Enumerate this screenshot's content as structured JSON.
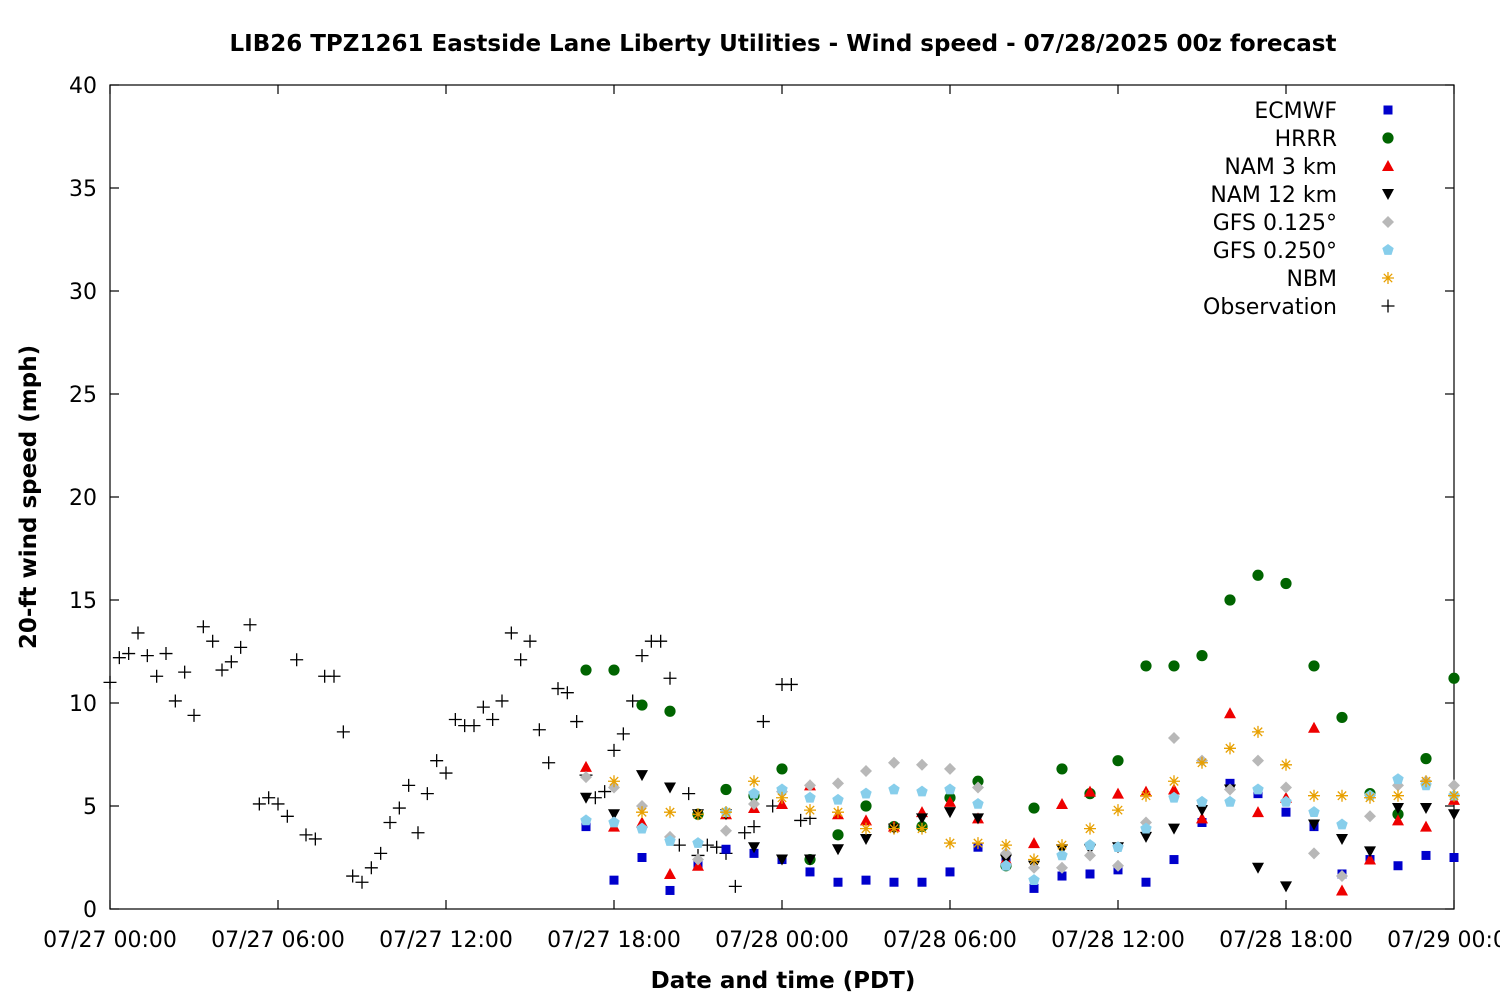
{
  "chart_data": {
    "type": "scatter",
    "title": "LIB26 TPZ1261 Eastside Lane Liberty Utilities - Wind speed - 07/28/2025 00z forecast",
    "xlabel": "Date and time (PDT)",
    "ylabel": "20-ft wind speed (mph)",
    "xlim": [
      "07/27 00:00",
      "07/29 00:00"
    ],
    "ylim": [
      0,
      40
    ],
    "x_tick_labels": [
      "07/27 00:00",
      "07/27 06:00",
      "07/27 12:00",
      "07/27 18:00",
      "07/28 00:00",
      "07/28 06:00",
      "07/28 12:00",
      "07/28 18:00",
      "07/29 00:00"
    ],
    "y_tick_labels": [
      "0",
      "5",
      "10",
      "15",
      "20",
      "25",
      "30",
      "35",
      "40"
    ],
    "grid": false,
    "legend_position": "top-right",
    "series": [
      {
        "name": "ECMWF",
        "marker": "square",
        "color": "#0000cc",
        "x": [
          "07/27 17:00",
          "07/27 18:00",
          "07/27 19:00",
          "07/27 20:00",
          "07/27 21:00",
          "07/27 22:00",
          "07/27 23:00",
          "07/28 00:00",
          "07/28 01:00",
          "07/28 02:00",
          "07/28 03:00",
          "07/28 04:00",
          "07/28 05:00",
          "07/28 06:00",
          "07/28 07:00",
          "07/28 08:00",
          "07/28 09:00",
          "07/28 10:00",
          "07/28 11:00",
          "07/28 12:00",
          "07/28 13:00",
          "07/28 14:00",
          "07/28 15:00",
          "07/28 16:00",
          "07/28 17:00",
          "07/28 18:00",
          "07/28 19:00",
          "07/28 20:00",
          "07/28 21:00",
          "07/28 22:00",
          "07/28 23:00",
          "07/29 00:00"
        ],
        "y": [
          4.0,
          1.4,
          2.5,
          0.9,
          2.2,
          2.9,
          2.7,
          2.4,
          1.8,
          1.3,
          1.4,
          1.3,
          1.3,
          1.8,
          3.0,
          2.3,
          1.0,
          1.6,
          1.7,
          1.9,
          1.3,
          2.4,
          4.2,
          6.1,
          5.6,
          4.7,
          4.0,
          1.7,
          2.4,
          2.1,
          2.6,
          2.5
        ]
      },
      {
        "name": "HRRR",
        "marker": "circle",
        "color": "#006400",
        "x": [
          "07/27 17:00",
          "07/27 18:00",
          "07/27 19:00",
          "07/27 20:00",
          "07/27 21:00",
          "07/27 22:00",
          "07/27 23:00",
          "07/28 00:00",
          "07/28 01:00",
          "07/28 02:00",
          "07/28 03:00",
          "07/28 04:00",
          "07/28 05:00",
          "07/28 06:00",
          "07/28 07:00",
          "07/28 08:00",
          "07/28 09:00",
          "07/28 10:00",
          "07/28 11:00",
          "07/28 12:00",
          "07/28 13:00",
          "07/28 14:00",
          "07/28 15:00",
          "07/28 16:00",
          "07/28 17:00",
          "07/28 18:00",
          "07/28 19:00",
          "07/28 20:00",
          "07/28 21:00",
          "07/28 22:00",
          "07/28 23:00",
          "07/29 00:00"
        ],
        "y": [
          11.6,
          11.6,
          9.9,
          9.6,
          4.6,
          5.8,
          5.5,
          6.8,
          2.4,
          3.6,
          5.0,
          4.0,
          4.0,
          5.4,
          6.2,
          2.1,
          4.9,
          6.8,
          5.6,
          7.2,
          11.8,
          11.8,
          12.3,
          15.0,
          16.2,
          15.8,
          11.8,
          9.3,
          5.6,
          4.6,
          7.3,
          11.2
        ]
      },
      {
        "name": "NAM 3 km",
        "marker": "triangle-up",
        "color": "#ee0000",
        "x": [
          "07/27 17:00",
          "07/27 18:00",
          "07/27 19:00",
          "07/27 20:00",
          "07/27 21:00",
          "07/27 22:00",
          "07/27 23:00",
          "07/28 00:00",
          "07/28 01:00",
          "07/28 02:00",
          "07/28 03:00",
          "07/28 04:00",
          "07/28 05:00",
          "07/28 06:00",
          "07/28 07:00",
          "07/28 08:00",
          "07/28 09:00",
          "07/28 10:00",
          "07/28 11:00",
          "07/28 12:00",
          "07/28 13:00",
          "07/28 14:00",
          "07/28 15:00",
          "07/28 16:00",
          "07/28 17:00",
          "07/28 18:00",
          "07/28 19:00",
          "07/28 20:00",
          "07/28 21:00",
          "07/28 22:00",
          "07/28 23:00",
          "07/29 00:00"
        ],
        "y": [
          6.9,
          4.0,
          4.2,
          1.7,
          2.1,
          4.6,
          4.9,
          5.1,
          6.0,
          4.6,
          4.3,
          4.0,
          4.7,
          5.2,
          4.4,
          2.4,
          3.2,
          5.1,
          5.7,
          5.6,
          5.7,
          5.8,
          4.4,
          9.5,
          4.7,
          5.4,
          8.8,
          0.9,
          2.4,
          4.3,
          4.0,
          5.3
        ]
      },
      {
        "name": "NAM 12 km",
        "marker": "triangle-down",
        "color": "#000000",
        "x": [
          "07/27 17:00",
          "07/27 18:00",
          "07/27 19:00",
          "07/27 20:00",
          "07/27 21:00",
          "07/27 22:00",
          "07/27 23:00",
          "07/28 00:00",
          "07/28 01:00",
          "07/28 02:00",
          "07/28 03:00",
          "07/28 04:00",
          "07/28 05:00",
          "07/28 06:00",
          "07/28 07:00",
          "07/28 08:00",
          "07/28 09:00",
          "07/28 10:00",
          "07/28 11:00",
          "07/28 12:00",
          "07/28 13:00",
          "07/28 14:00",
          "07/28 15:00",
          "07/28 16:00",
          "07/28 17:00",
          "07/28 18:00",
          "07/28 19:00",
          "07/28 20:00",
          "07/28 21:00",
          "07/28 22:00",
          "07/28 23:00",
          "07/29 00:00"
        ],
        "y": [
          5.4,
          4.6,
          6.5,
          5.9,
          4.6,
          4.6,
          3.0,
          2.4,
          2.4,
          2.9,
          3.4,
          3.9,
          4.4,
          4.7,
          4.4,
          2.4,
          2.1,
          2.9,
          2.9,
          3.0,
          3.5,
          3.9,
          4.8,
          5.8,
          2.0,
          1.1,
          4.1,
          3.4,
          2.8,
          4.9,
          4.9,
          4.6
        ]
      },
      {
        "name": "GFS 0.125°",
        "marker": "diamond",
        "color": "#b8b8b8",
        "x": [
          "07/27 17:00",
          "07/27 18:00",
          "07/27 19:00",
          "07/27 20:00",
          "07/27 21:00",
          "07/27 22:00",
          "07/27 23:00",
          "07/28 00:00",
          "07/28 01:00",
          "07/28 02:00",
          "07/28 03:00",
          "07/28 04:00",
          "07/28 05:00",
          "07/28 06:00",
          "07/28 07:00",
          "07/28 08:00",
          "07/28 09:00",
          "07/28 10:00",
          "07/28 11:00",
          "07/28 12:00",
          "07/28 13:00",
          "07/28 14:00",
          "07/28 15:00",
          "07/28 16:00",
          "07/28 17:00",
          "07/28 18:00",
          "07/28 19:00",
          "07/28 20:00",
          "07/28 21:00",
          "07/28 22:00",
          "07/28 23:00",
          "07/29 00:00"
        ],
        "y": [
          6.4,
          5.9,
          5.0,
          3.5,
          2.4,
          3.8,
          5.1,
          5.7,
          6.0,
          6.1,
          6.7,
          7.1,
          7.0,
          6.8,
          5.9,
          2.7,
          2.0,
          2.0,
          2.6,
          2.1,
          4.2,
          8.3,
          7.2,
          5.8,
          7.2,
          5.9,
          2.7,
          1.6,
          4.5,
          6.0,
          6.2,
          6.0
        ]
      },
      {
        "name": "GFS 0.250°",
        "marker": "pentagon",
        "color": "#87ceeb",
        "x": [
          "07/27 17:00",
          "07/27 18:00",
          "07/27 19:00",
          "07/27 20:00",
          "07/27 21:00",
          "07/27 22:00",
          "07/27 23:00",
          "07/28 00:00",
          "07/28 01:00",
          "07/28 02:00",
          "07/28 03:00",
          "07/28 04:00",
          "07/28 05:00",
          "07/28 06:00",
          "07/28 07:00",
          "07/28 08:00",
          "07/28 09:00",
          "07/28 10:00",
          "07/28 11:00",
          "07/28 12:00",
          "07/28 13:00",
          "07/28 14:00",
          "07/28 15:00",
          "07/28 16:00",
          "07/28 17:00",
          "07/28 18:00",
          "07/28 19:00",
          "07/28 20:00",
          "07/28 21:00",
          "07/28 22:00",
          "07/28 23:00",
          "07/29 00:00"
        ],
        "y": [
          4.3,
          4.2,
          3.9,
          3.3,
          3.2,
          4.7,
          5.6,
          5.8,
          5.4,
          5.3,
          5.6,
          5.8,
          5.7,
          5.8,
          5.1,
          2.1,
          1.4,
          2.6,
          3.1,
          3.0,
          3.9,
          5.4,
          5.2,
          5.2,
          5.8,
          5.2,
          4.7,
          4.1,
          5.5,
          6.3,
          6.0,
          5.5
        ]
      },
      {
        "name": "NBM",
        "marker": "asterisk",
        "color": "#e8a000",
        "x": [
          "07/27 18:00",
          "07/27 19:00",
          "07/27 20:00",
          "07/27 21:00",
          "07/27 22:00",
          "07/27 23:00",
          "07/28 00:00",
          "07/28 01:00",
          "07/28 02:00",
          "07/28 03:00",
          "07/28 04:00",
          "07/28 05:00",
          "07/28 06:00",
          "07/28 07:00",
          "07/28 08:00",
          "07/28 09:00",
          "07/28 10:00",
          "07/28 11:00",
          "07/28 12:00",
          "07/28 13:00",
          "07/28 14:00",
          "07/28 15:00",
          "07/28 16:00",
          "07/28 17:00",
          "07/28 18:00",
          "07/28 19:00",
          "07/28 20:00",
          "07/28 21:00",
          "07/28 22:00",
          "07/28 23:00",
          "07/29 00:00"
        ],
        "y": [
          6.2,
          4.7,
          4.7,
          4.6,
          4.7,
          6.2,
          5.4,
          4.8,
          4.7,
          3.9,
          3.9,
          3.9,
          3.2,
          3.2,
          3.1,
          2.4,
          3.1,
          3.9,
          4.8,
          5.5,
          6.2,
          7.1,
          7.8,
          8.6,
          7.0,
          5.5,
          5.5,
          5.4,
          5.5,
          6.2,
          5.5
        ]
      },
      {
        "name": "Observation",
        "marker": "plus",
        "color": "#000000",
        "x": [
          "07/27 00:00",
          "07/27 00:20",
          "07/27 00:40",
          "07/27 01:00",
          "07/27 01:20",
          "07/27 01:40",
          "07/27 02:00",
          "07/27 02:20",
          "07/27 02:40",
          "07/27 03:00",
          "07/27 03:20",
          "07/27 03:40",
          "07/27 04:00",
          "07/27 04:20",
          "07/27 04:40",
          "07/27 05:00",
          "07/27 05:20",
          "07/27 05:40",
          "07/27 06:00",
          "07/27 06:20",
          "07/27 06:40",
          "07/27 07:00",
          "07/27 07:20",
          "07/27 07:40",
          "07/27 08:00",
          "07/27 08:20",
          "07/27 08:40",
          "07/27 09:00",
          "07/27 09:20",
          "07/27 09:40",
          "07/27 10:00",
          "07/27 10:20",
          "07/27 10:40",
          "07/27 11:00",
          "07/27 11:20",
          "07/27 11:40",
          "07/27 12:00",
          "07/27 12:20",
          "07/27 12:40",
          "07/27 13:00",
          "07/27 13:20",
          "07/27 13:40",
          "07/27 14:00",
          "07/27 14:20",
          "07/27 14:40",
          "07/27 15:00",
          "07/27 15:20",
          "07/27 15:40",
          "07/27 16:00",
          "07/27 16:20",
          "07/27 16:40",
          "07/27 17:00",
          "07/27 17:20",
          "07/27 17:40",
          "07/27 18:00",
          "07/27 18:20",
          "07/27 18:40",
          "07/27 19:00",
          "07/27 19:20",
          "07/27 19:40",
          "07/27 20:00",
          "07/27 20:20",
          "07/27 20:40",
          "07/27 21:00",
          "07/27 21:20",
          "07/27 21:40",
          "07/27 22:00",
          "07/27 22:20",
          "07/27 22:40",
          "07/27 23:00",
          "07/27 23:20",
          "07/27 23:40",
          "07/28 00:00",
          "07/28 00:20",
          "07/28 00:40",
          "07/28 01:00"
        ],
        "y": [
          11.0,
          12.2,
          12.4,
          13.4,
          12.3,
          11.3,
          12.4,
          10.1,
          11.5,
          9.4,
          13.7,
          13.0,
          11.6,
          12.0,
          12.7,
          13.8,
          5.1,
          5.4,
          5.1,
          4.5,
          12.1,
          3.6,
          3.4,
          11.3,
          11.3,
          8.6,
          1.6,
          1.3,
          2.0,
          2.7,
          4.2,
          4.9,
          6.0,
          3.7,
          5.6,
          7.2,
          6.6,
          9.2,
          8.9,
          8.9,
          9.8,
          9.2,
          10.1,
          13.4,
          12.1,
          13.0,
          8.7,
          7.1,
          10.7,
          10.5,
          9.1,
          6.5,
          5.4,
          5.7,
          7.7,
          8.5,
          10.1,
          12.3,
          13.0,
          13.0,
          11.2,
          3.1,
          5.6,
          2.6,
          3.1,
          3.0,
          2.7,
          1.1,
          3.7,
          4.0,
          9.1,
          5.0,
          10.9,
          10.9,
          4.3,
          4.4
        ]
      }
    ]
  }
}
